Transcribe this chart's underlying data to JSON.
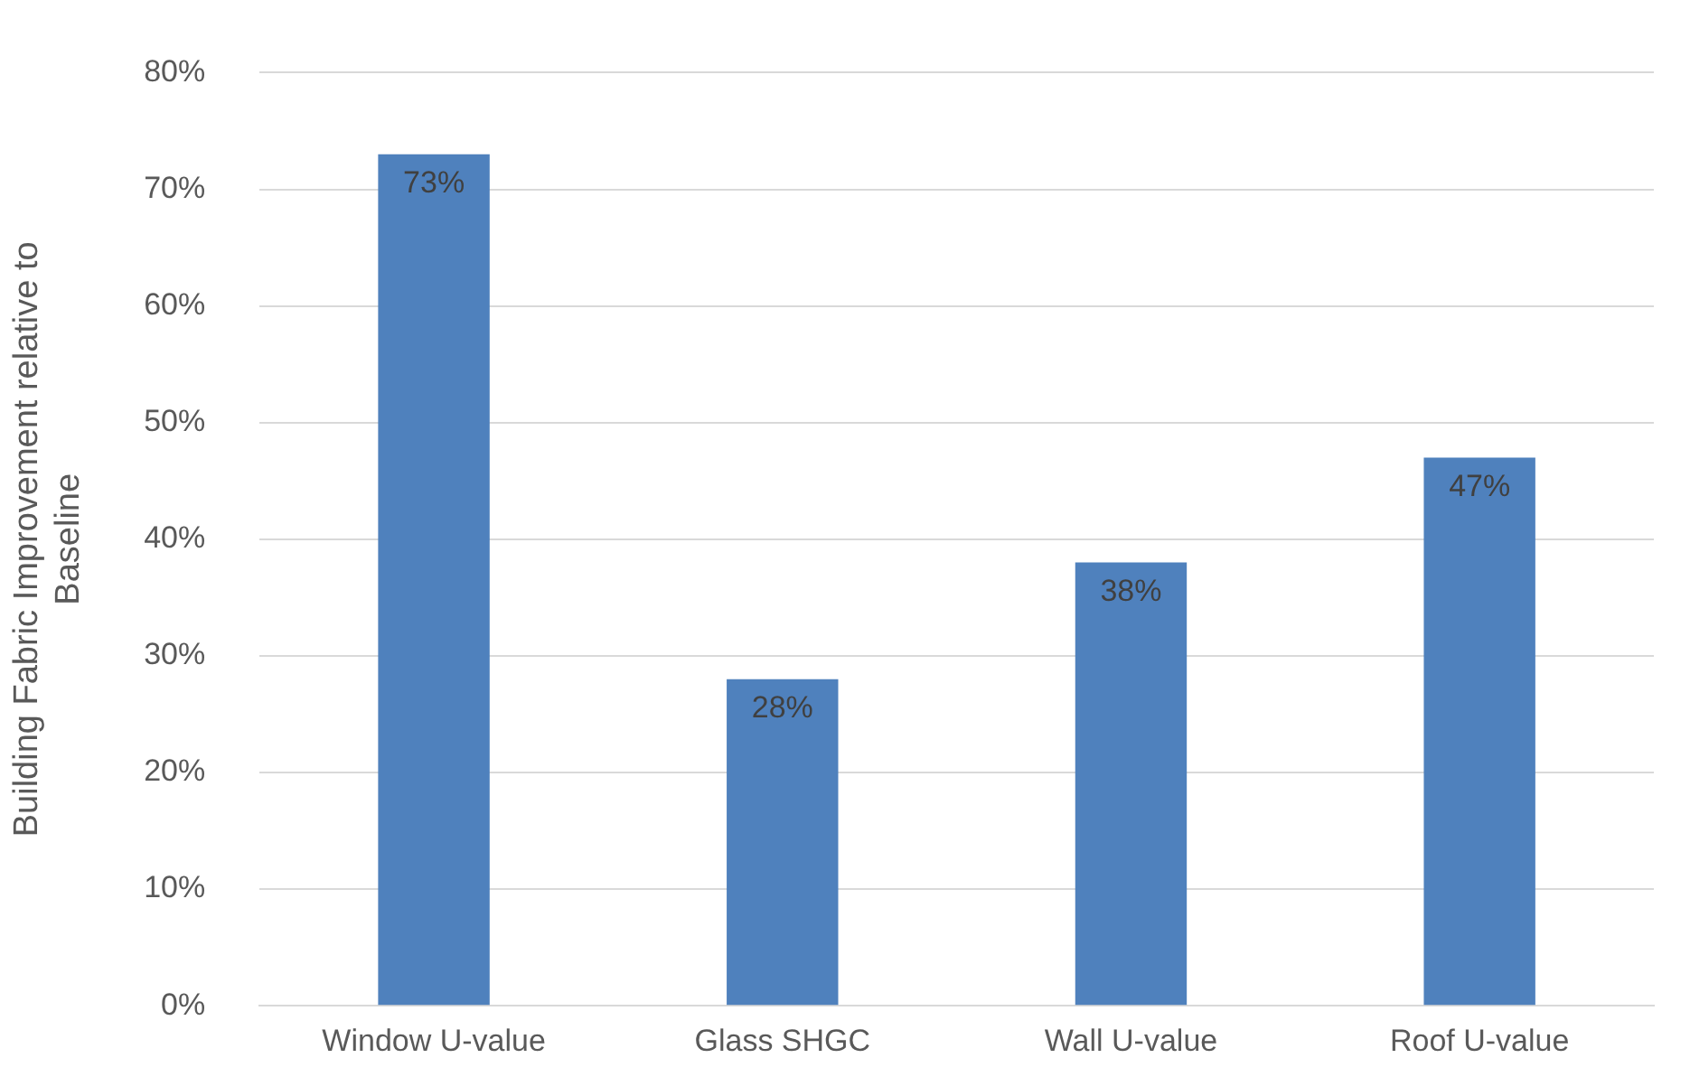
{
  "chart_data": {
    "type": "bar",
    "ylabel": "Building Fabric Improvement relative to Baseline",
    "categories": [
      "Window U-value",
      "Glass SHGC",
      "Wall U-value",
      "Roof U-value"
    ],
    "values": [
      73,
      28,
      38,
      47
    ],
    "color": "#4f81bd",
    "value_labels": [
      "73%",
      "28%",
      "38%",
      "47%"
    ],
    "ylim": [
      0,
      80
    ],
    "yticks": [
      {
        "value": 0,
        "label": "0%"
      },
      {
        "value": 10,
        "label": "10%"
      },
      {
        "value": 20,
        "label": "20%"
      },
      {
        "value": 30,
        "label": "30%"
      },
      {
        "value": 40,
        "label": "40%"
      },
      {
        "value": 50,
        "label": "50%"
      },
      {
        "value": 60,
        "label": "60%"
      },
      {
        "value": 70,
        "label": "70%"
      },
      {
        "value": 80,
        "label": "80%"
      }
    ],
    "grid": "y"
  }
}
